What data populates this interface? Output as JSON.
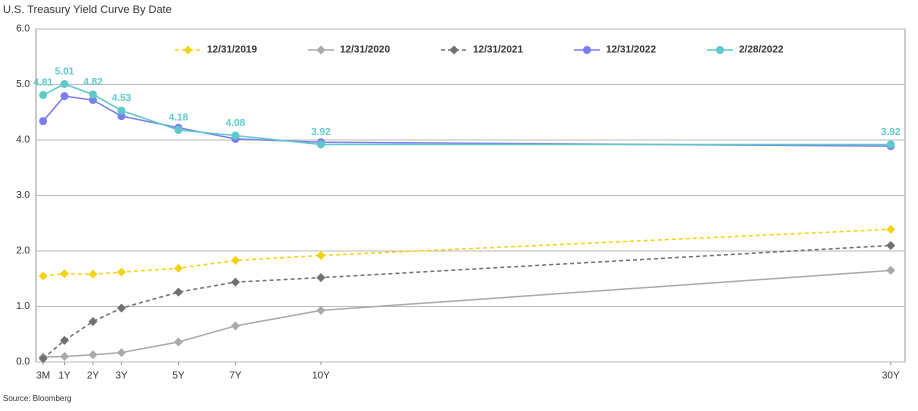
{
  "chart_data": {
    "type": "line",
    "title": "U.S. Treasury Yield Curve By Date",
    "source": "Source: Bloomberg",
    "x": [
      0.25,
      1,
      2,
      3,
      5,
      7,
      10,
      30
    ],
    "xlim": [
      0,
      30.5
    ],
    "xticks": [
      {
        "value": 0.25,
        "label": "3M"
      },
      {
        "value": 1,
        "label": "1Y"
      },
      {
        "value": 2,
        "label": "2Y"
      },
      {
        "value": 3,
        "label": "3Y"
      },
      {
        "value": 5,
        "label": "5Y"
      },
      {
        "value": 7,
        "label": "7Y"
      },
      {
        "value": 10,
        "label": "10Y"
      },
      {
        "value": 30,
        "label": "30Y"
      }
    ],
    "ylim": [
      0,
      6
    ],
    "yticks": [
      {
        "value": 0,
        "label": "0.0"
      },
      {
        "value": 1,
        "label": "1.0"
      },
      {
        "value": 2,
        "label": "2.0"
      },
      {
        "value": 3,
        "label": "3.0"
      },
      {
        "value": 4,
        "label": "4.0"
      },
      {
        "value": 5,
        "label": "5.0"
      },
      {
        "value": 6,
        "label": "6.0"
      }
    ],
    "grid": true,
    "series": [
      {
        "name": "12/31/2019",
        "color": "#f2d318",
        "dash": true,
        "marker": "diamond",
        "values": [
          1.55,
          1.59,
          1.58,
          1.62,
          1.69,
          1.83,
          1.92,
          2.39
        ]
      },
      {
        "name": "12/31/2020",
        "color": "#aaaaaa",
        "dash": false,
        "marker": "diamond",
        "values": [
          0.09,
          0.1,
          0.13,
          0.17,
          0.36,
          0.65,
          0.93,
          1.65
        ]
      },
      {
        "name": "12/31/2021",
        "color": "#707070",
        "dash": true,
        "marker": "diamond",
        "values": [
          0.06,
          0.39,
          0.73,
          0.97,
          1.26,
          1.44,
          1.52,
          2.1
        ]
      },
      {
        "name": "12/31/2022",
        "color": "#7b7ef0",
        "dash": false,
        "marker": "circle",
        "values": [
          4.34,
          4.79,
          4.72,
          4.43,
          4.22,
          4.02,
          3.96,
          3.89
        ]
      },
      {
        "name": "2/28/2022",
        "color": "#5fc9c9",
        "dash": false,
        "marker": "circle",
        "data_labels": true,
        "values": [
          4.81,
          5.01,
          4.82,
          4.53,
          4.18,
          4.08,
          3.92,
          3.92
        ]
      }
    ]
  }
}
